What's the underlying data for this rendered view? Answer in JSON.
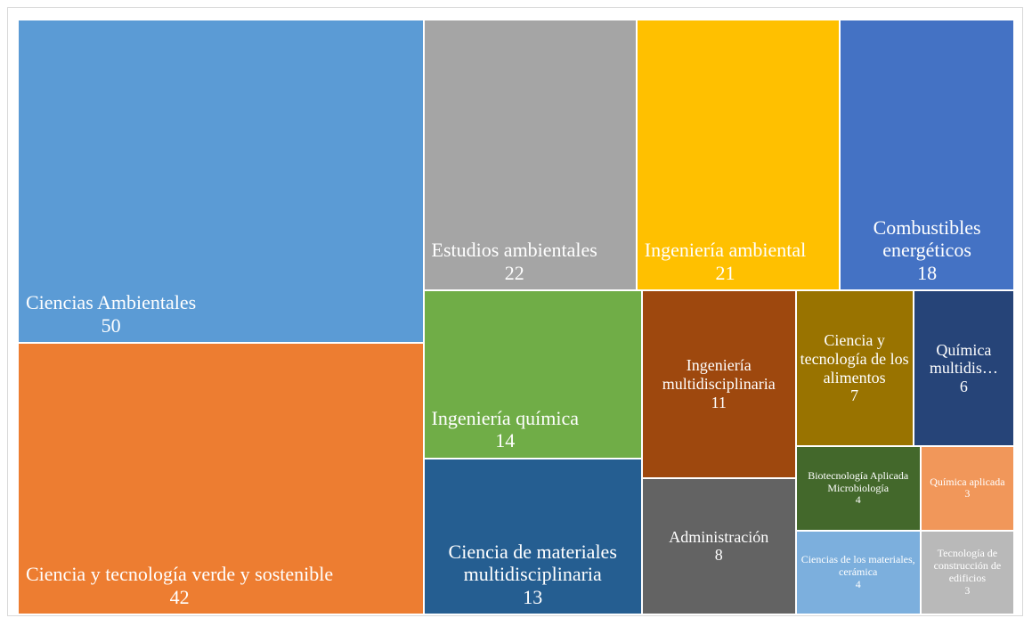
{
  "chart_data": {
    "type": "treemap",
    "categories": [
      "Ciencias Ambientales",
      "Ciencia y tecnología verde y sostenible",
      "Estudios ambientales",
      "Ingeniería ambiental",
      "Combustibles energéticos",
      "Ingeniería química",
      "Ciencia de materiales multidisciplinaria",
      "Ingeniería multidisciplinaria",
      "Administración",
      "Ciencia y tecnología de los alimentos",
      "Química multidis…",
      "Biotecnología Aplicada Microbiología",
      "Química aplicada",
      "Ciencias de los materiales, cerámica",
      "Tecnología de construcción de edificios"
    ],
    "values": [
      50,
      42,
      22,
      21,
      18,
      14,
      13,
      11,
      8,
      7,
      6,
      4,
      3,
      4,
      3
    ],
    "colors": [
      "#5b9bd5",
      "#ed7d31",
      "#a5a5a5",
      "#ffc000",
      "#4472c4",
      "#70ad47",
      "#255e91",
      "#9e480e",
      "#636363",
      "#997300",
      "#264478",
      "#43682b",
      "#f1975a",
      "#7cafdd",
      "#b9b9b9"
    ]
  }
}
